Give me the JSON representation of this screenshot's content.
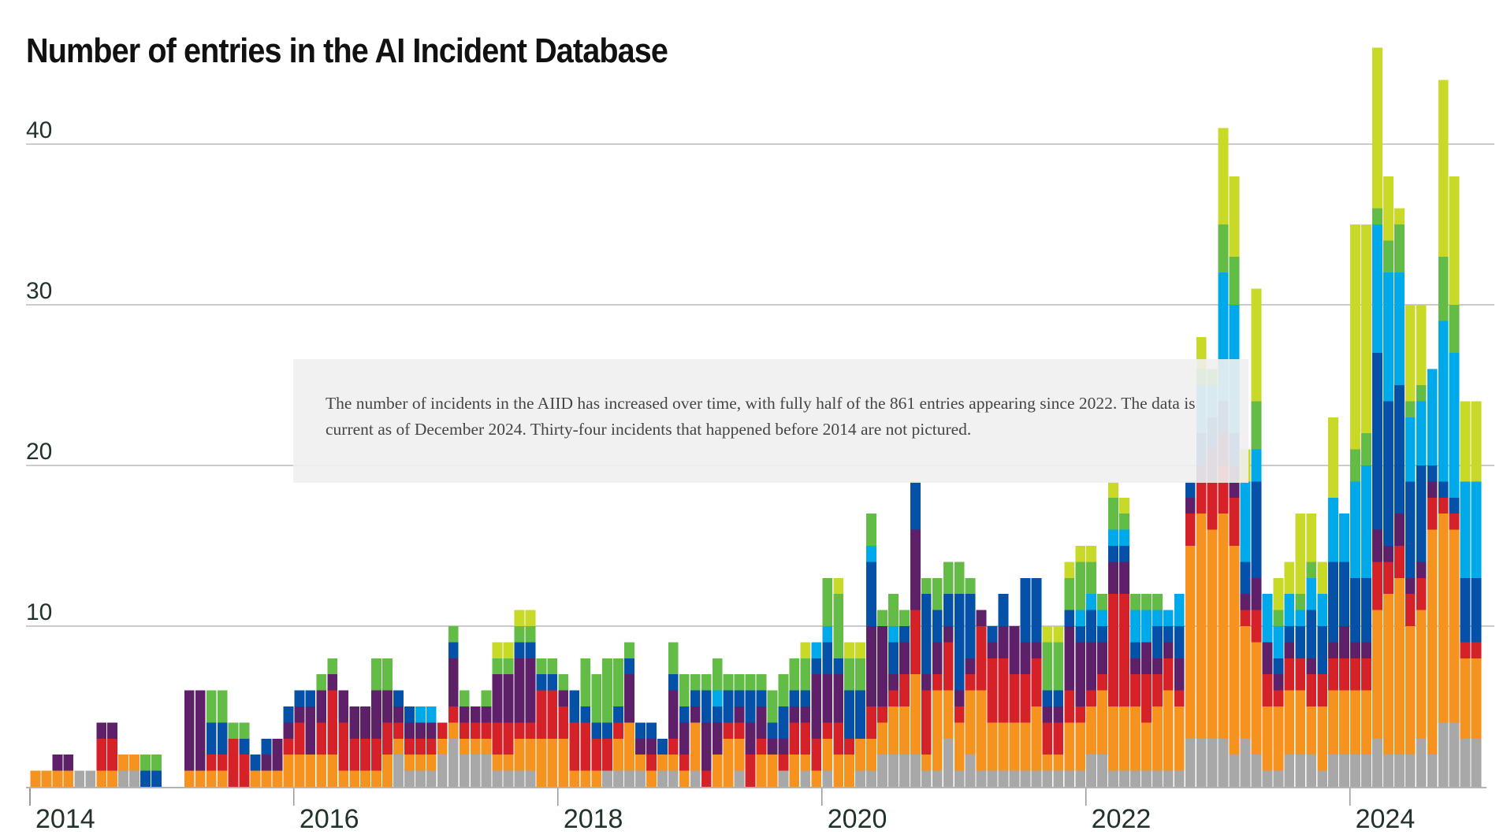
{
  "title": "Number of entries in the AI Incident Database",
  "annotation": {
    "text": "The number of incidents in the AIID has increased over time, with fully half of the 861 entries appearing since 2022. The data is current as of December 2024. Thirty-four incidents that happened before 2014 are not pictured."
  },
  "chart_data": {
    "type": "bar",
    "stacked": true,
    "title": "Number of entries in the AI Incident Database",
    "xlabel": "",
    "ylabel": "",
    "bar_period": "month",
    "x_start": "2014-01",
    "x_end": "2024-12",
    "n_bars": 132,
    "x_tick_labels": [
      "2014",
      "2016",
      "2018",
      "2020",
      "2022",
      "2024"
    ],
    "x_tick_years": [
      2014,
      2016,
      2018,
      2020,
      2022,
      2024
    ],
    "y_ticks": [
      10,
      20,
      30,
      40
    ],
    "ylim": [
      0,
      47
    ],
    "grid": "horizontal-only",
    "legend_position": "none",
    "series": [
      {
        "name": "gray",
        "color": "#a8a8a8",
        "values": [
          0,
          0,
          0,
          0,
          1,
          1,
          0,
          0,
          1,
          1,
          0,
          0,
          0,
          0,
          0,
          0,
          0,
          0,
          0,
          0,
          0,
          0,
          0,
          0,
          0,
          0,
          0,
          0,
          0,
          0,
          0,
          0,
          0,
          2,
          1,
          1,
          1,
          2,
          3,
          2,
          2,
          2,
          1,
          1,
          1,
          1,
          0,
          0,
          0,
          0,
          0,
          0,
          1,
          1,
          1,
          1,
          0,
          1,
          1,
          0,
          1,
          0,
          0,
          0,
          1,
          0,
          0,
          0,
          1,
          0,
          1,
          0,
          1,
          0,
          0,
          1,
          1,
          2,
          2,
          2,
          2,
          1,
          1,
          3,
          1,
          2,
          1,
          1,
          1,
          1,
          1,
          1,
          1,
          1,
          1,
          1,
          2,
          2,
          1,
          1,
          1,
          1,
          1,
          1,
          1,
          3,
          3,
          3,
          3,
          2,
          3,
          2,
          1,
          1,
          2,
          2,
          2,
          1,
          2,
          2,
          2,
          2,
          3,
          2,
          2,
          2,
          3,
          2,
          4,
          4,
          3,
          3
        ]
      },
      {
        "name": "orange",
        "color": "#f6921e",
        "values": [
          1,
          1,
          1,
          1,
          0,
          0,
          1,
          1,
          1,
          1,
          0,
          0,
          0,
          0,
          1,
          1,
          1,
          1,
          0,
          0,
          1,
          1,
          1,
          2,
          2,
          2,
          2,
          2,
          1,
          1,
          1,
          1,
          2,
          1,
          1,
          1,
          1,
          1,
          1,
          1,
          1,
          1,
          1,
          1,
          2,
          2,
          3,
          3,
          3,
          1,
          1,
          1,
          0,
          2,
          3,
          1,
          1,
          1,
          1,
          1,
          3,
          0,
          2,
          3,
          2,
          0,
          2,
          2,
          0,
          2,
          1,
          1,
          2,
          2,
          2,
          2,
          2,
          2,
          3,
          3,
          5,
          1,
          5,
          3,
          3,
          4,
          5,
          3,
          3,
          3,
          3,
          4,
          1,
          1,
          3,
          3,
          3,
          4,
          4,
          4,
          4,
          3,
          4,
          5,
          4,
          12,
          14,
          13,
          14,
          13,
          7,
          7,
          4,
          4,
          4,
          4,
          3,
          4,
          4,
          4,
          4,
          4,
          8,
          10,
          11,
          8,
          8,
          14,
          13,
          12,
          5,
          5
        ]
      },
      {
        "name": "red",
        "color": "#d42228",
        "values": [
          0,
          0,
          0,
          0,
          0,
          0,
          2,
          2,
          0,
          0,
          0,
          0,
          0,
          0,
          0,
          0,
          1,
          1,
          3,
          2,
          0,
          0,
          0,
          1,
          2,
          0,
          2,
          4,
          3,
          2,
          2,
          2,
          2,
          1,
          1,
          1,
          1,
          1,
          1,
          1,
          1,
          1,
          2,
          2,
          1,
          1,
          3,
          3,
          2,
          3,
          3,
          2,
          2,
          1,
          0,
          0,
          1,
          0,
          1,
          1,
          0,
          1,
          0,
          1,
          1,
          2,
          1,
          0,
          1,
          2,
          2,
          2,
          1,
          2,
          1,
          0,
          2,
          1,
          1,
          2,
          4,
          4,
          1,
          3,
          1,
          1,
          4,
          4,
          4,
          3,
          3,
          3,
          2,
          2,
          2,
          1,
          1,
          1,
          7,
          7,
          2,
          3,
          2,
          2,
          1,
          2,
          2,
          3,
          3,
          3,
          1,
          2,
          2,
          1,
          2,
          2,
          2,
          2,
          2,
          2,
          2,
          2,
          3,
          2,
          2,
          2,
          2,
          2,
          1,
          1,
          1,
          1
        ]
      },
      {
        "name": "purple",
        "color": "#5e2069",
        "values": [
          0,
          0,
          1,
          1,
          0,
          0,
          1,
          1,
          0,
          0,
          0,
          0,
          0,
          0,
          5,
          5,
          0,
          0,
          0,
          0,
          0,
          1,
          2,
          1,
          1,
          3,
          2,
          1,
          2,
          2,
          2,
          3,
          2,
          1,
          1,
          1,
          1,
          0,
          3,
          1,
          1,
          1,
          3,
          3,
          4,
          4,
          0,
          0,
          1,
          0,
          0,
          0,
          0,
          0,
          3,
          1,
          1,
          0,
          3,
          2,
          1,
          3,
          2,
          0,
          1,
          2,
          2,
          1,
          1,
          1,
          1,
          4,
          3,
          3,
          0,
          0,
          5,
          5,
          1,
          2,
          5,
          1,
          2,
          1,
          1,
          1,
          1,
          1,
          2,
          3,
          2,
          1,
          1,
          1,
          4,
          4,
          3,
          2,
          2,
          2,
          1,
          2,
          1,
          1,
          2,
          1,
          1,
          2,
          2,
          2,
          1,
          2,
          2,
          1,
          1,
          0,
          1,
          0,
          1,
          2,
          1,
          1,
          2,
          1,
          2,
          1,
          1,
          1,
          0,
          0,
          0,
          0
        ]
      },
      {
        "name": "blue",
        "color": "#0551a8",
        "values": [
          0,
          0,
          0,
          0,
          0,
          0,
          0,
          0,
          0,
          0,
          1,
          1,
          0,
          0,
          0,
          0,
          2,
          2,
          0,
          1,
          1,
          1,
          0,
          1,
          1,
          1,
          0,
          0,
          0,
          0,
          0,
          0,
          0,
          1,
          1,
          0,
          0,
          0,
          1,
          0,
          0,
          0,
          0,
          0,
          1,
          1,
          1,
          1,
          0,
          2,
          1,
          1,
          1,
          1,
          1,
          1,
          1,
          1,
          1,
          1,
          1,
          2,
          1,
          2,
          1,
          2,
          1,
          1,
          2,
          1,
          1,
          1,
          2,
          1,
          3,
          3,
          4,
          0,
          2,
          1,
          3,
          5,
          2,
          2,
          6,
          4,
          0,
          1,
          2,
          0,
          4,
          4,
          1,
          1,
          1,
          1,
          2,
          1,
          1,
          1,
          1,
          0,
          2,
          1,
          2,
          1,
          2,
          2,
          2,
          2,
          2,
          6,
          0,
          1,
          1,
          2,
          3,
          3,
          5,
          4,
          4,
          4,
          11,
          9,
          8,
          6,
          6,
          1,
          1,
          1,
          4,
          4
        ]
      },
      {
        "name": "cyan",
        "color": "#00a9ea",
        "values": [
          0,
          0,
          0,
          0,
          0,
          0,
          0,
          0,
          0,
          0,
          0,
          0,
          0,
          0,
          0,
          0,
          0,
          0,
          0,
          0,
          0,
          0,
          0,
          0,
          0,
          0,
          0,
          0,
          0,
          0,
          0,
          0,
          0,
          0,
          0,
          1,
          1,
          0,
          0,
          0,
          0,
          0,
          0,
          0,
          0,
          0,
          0,
          0,
          0,
          0,
          0,
          0,
          0,
          0,
          0,
          0,
          0,
          0,
          0,
          0,
          0,
          0,
          1,
          0,
          0,
          0,
          0,
          0,
          0,
          0,
          0,
          1,
          1,
          0,
          0,
          0,
          1,
          0,
          1,
          0,
          0,
          0,
          0,
          0,
          0,
          0,
          0,
          0,
          0,
          0,
          0,
          0,
          0,
          0,
          0,
          1,
          1,
          1,
          1,
          1,
          2,
          2,
          1,
          1,
          2,
          0,
          3,
          2,
          8,
          8,
          5,
          2,
          3,
          2,
          2,
          1,
          2,
          2,
          4,
          3,
          6,
          7,
          8,
          8,
          7,
          4,
          4,
          6,
          10,
          9,
          6,
          6
        ]
      },
      {
        "name": "green",
        "color": "#62bc46",
        "values": [
          0,
          0,
          0,
          0,
          0,
          0,
          0,
          0,
          0,
          0,
          1,
          1,
          0,
          0,
          0,
          0,
          2,
          2,
          1,
          1,
          0,
          0,
          0,
          0,
          0,
          0,
          1,
          1,
          0,
          0,
          0,
          2,
          2,
          0,
          0,
          0,
          0,
          0,
          1,
          1,
          0,
          1,
          1,
          1,
          1,
          1,
          1,
          1,
          1,
          0,
          3,
          3,
          4,
          3,
          1,
          0,
          0,
          0,
          2,
          2,
          1,
          1,
          2,
          1,
          1,
          1,
          1,
          2,
          2,
          2,
          2,
          0,
          3,
          4,
          2,
          2,
          2,
          1,
          2,
          1,
          0,
          1,
          2,
          2,
          2,
          1,
          0,
          0,
          0,
          0,
          0,
          0,
          3,
          3,
          2,
          3,
          2,
          1,
          2,
          1,
          1,
          1,
          1,
          0,
          0,
          0,
          1,
          1,
          3,
          3,
          0,
          3,
          0,
          1,
          0,
          1,
          1,
          0,
          0,
          0,
          2,
          2,
          1,
          2,
          3,
          1,
          1,
          0,
          4,
          3,
          0,
          0
        ]
      },
      {
        "name": "lime",
        "color": "#c8da27",
        "values": [
          0,
          0,
          0,
          0,
          0,
          0,
          0,
          0,
          0,
          0,
          0,
          0,
          0,
          0,
          0,
          0,
          0,
          0,
          0,
          0,
          0,
          0,
          0,
          0,
          0,
          0,
          0,
          0,
          0,
          0,
          0,
          0,
          0,
          0,
          0,
          0,
          0,
          0,
          0,
          0,
          0,
          0,
          1,
          1,
          1,
          1,
          0,
          0,
          0,
          0,
          0,
          0,
          0,
          0,
          0,
          0,
          0,
          0,
          0,
          0,
          0,
          0,
          0,
          0,
          0,
          0,
          0,
          0,
          0,
          0,
          1,
          0,
          0,
          1,
          1,
          1,
          0,
          0,
          0,
          0,
          0,
          0,
          0,
          0,
          0,
          0,
          0,
          0,
          0,
          0,
          0,
          0,
          1,
          1,
          1,
          1,
          1,
          0,
          1,
          1,
          0,
          0,
          0,
          0,
          0,
          0,
          2,
          0,
          6,
          5,
          2,
          7,
          0,
          2,
          2,
          5,
          3,
          2,
          5,
          0,
          14,
          13,
          10,
          4,
          1,
          6,
          5,
          0,
          11,
          8,
          5,
          5
        ]
      }
    ]
  }
}
